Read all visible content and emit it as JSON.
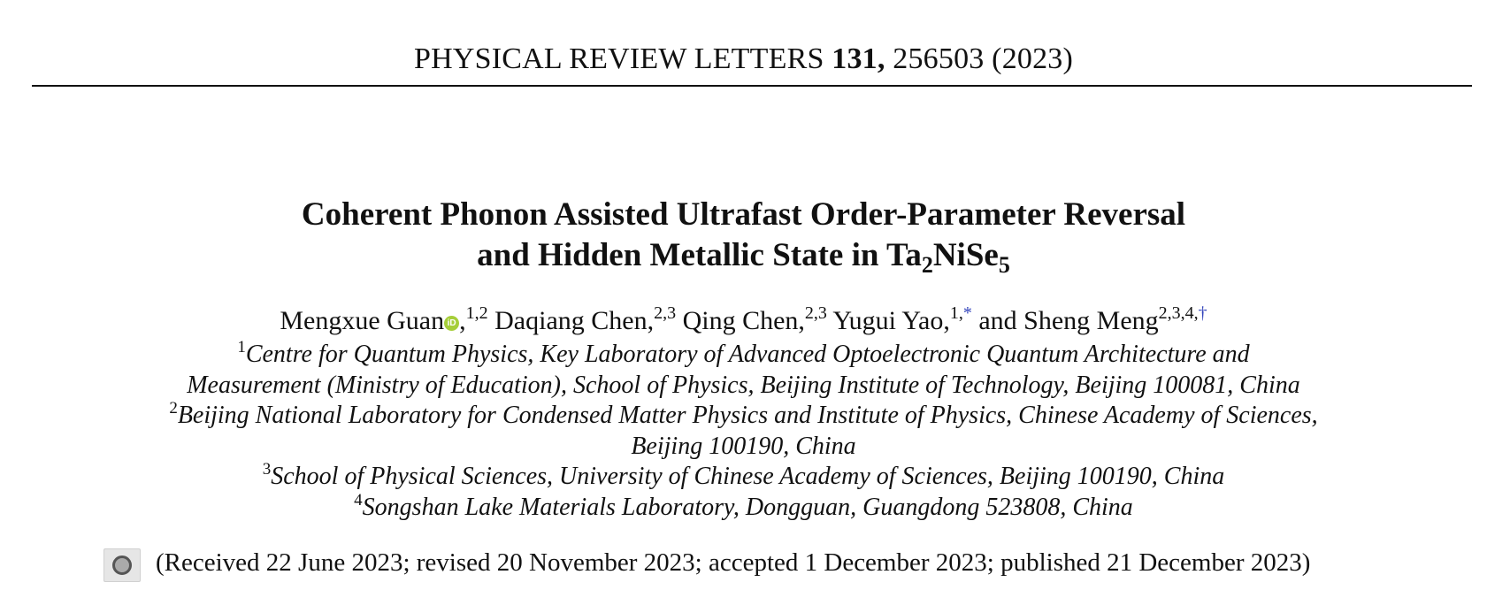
{
  "header": {
    "journal": "PHYSICAL REVIEW LETTERS",
    "volume": "131,",
    "article": "256503 (2023)"
  },
  "title": {
    "line1": "Coherent Phonon Assisted Ultrafast Order-Parameter Reversal",
    "line2_pre": "and Hidden Metallic State in Ta",
    "sub1": "2",
    "mid": "NiSe",
    "sub2": "5"
  },
  "authors": [
    {
      "name": "Mengxue Guan",
      "sup": "1,2",
      "orcid": "iD"
    },
    {
      "name": "Daqiang Chen,",
      "sup": "2,3"
    },
    {
      "name": "Qing Chen,",
      "sup": "2,3"
    },
    {
      "name": "Yugui Yao,",
      "sup": "1,",
      "mark": "*"
    },
    {
      "name": "and Sheng Meng",
      "sup": "2,3,4,",
      "mark": "†"
    }
  ],
  "affiliations": [
    {
      "num": "1",
      "line1": "Centre for Quantum Physics, Key Laboratory of Advanced Optoelectronic Quantum Architecture and",
      "line2": "Measurement (Ministry of Education), School of Physics, Beijing Institute of Technology, Beijing 100081, China"
    },
    {
      "num": "2",
      "line1": "Beijing National Laboratory for Condensed Matter Physics and Institute of Physics, Chinese Academy of Sciences,",
      "line2": "Beijing 100190, China"
    },
    {
      "num": "3",
      "line1": "School of Physical Sciences, University of Chinese Academy of Sciences, Beijing 100190, China"
    },
    {
      "num": "4",
      "line1": "Songshan Lake Materials Laboratory, Dongguan, Guangdong 523808, China"
    }
  ],
  "received": "(Received 22 June 2023; revised 20 November 2023; accepted 1 December 2023; published 21 December 2023)",
  "icons": {
    "crossmark": "check-for-updates-icon",
    "orcid": "orcid-icon"
  },
  "colors": {
    "orcid": "#a6ce39",
    "link": "#3344bb"
  }
}
